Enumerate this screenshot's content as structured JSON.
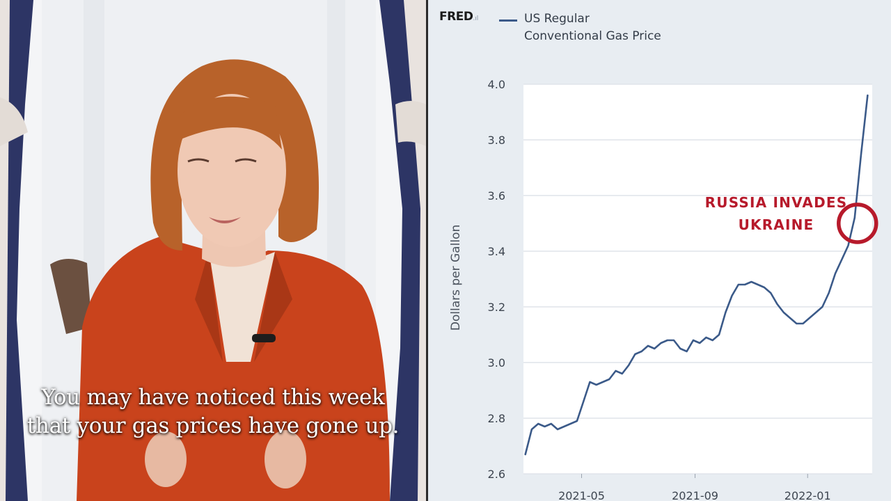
{
  "caption": {
    "line1": "You may have noticed this week",
    "line2": "that your gas prices have gone up."
  },
  "source_logo": "FRED",
  "annotation": {
    "line1": "RUSSIA INVADES",
    "line2": "UKRAINE",
    "color": "#b71a2b"
  },
  "colors": {
    "line": "#3b5a89",
    "plot_background": "#ffffff",
    "panel_background": "#e8edf2"
  },
  "chart_data": {
    "type": "line",
    "title": "",
    "xlabel": "",
    "ylabel": "Dollars per Gallon",
    "ylim": [
      2.6,
      4.0
    ],
    "yticks": [
      2.6,
      2.8,
      3.0,
      3.2,
      3.4,
      3.6,
      3.8,
      4.0
    ],
    "xticks": [
      "2021-05",
      "2021-09",
      "2022-01"
    ],
    "grid": true,
    "legend_position": "top",
    "series": [
      {
        "name": "US Regular Conventional Gas Price",
        "x": [
          "2021-03-01",
          "2021-03-08",
          "2021-03-15",
          "2021-03-22",
          "2021-03-29",
          "2021-04-05",
          "2021-04-12",
          "2021-04-19",
          "2021-04-26",
          "2021-05-03",
          "2021-05-10",
          "2021-05-17",
          "2021-05-24",
          "2021-05-31",
          "2021-06-07",
          "2021-06-14",
          "2021-06-21",
          "2021-06-28",
          "2021-07-05",
          "2021-07-12",
          "2021-07-19",
          "2021-07-26",
          "2021-08-02",
          "2021-08-09",
          "2021-08-16",
          "2021-08-23",
          "2021-08-30",
          "2021-09-06",
          "2021-09-13",
          "2021-09-20",
          "2021-09-27",
          "2021-10-04",
          "2021-10-11",
          "2021-10-18",
          "2021-10-25",
          "2021-11-01",
          "2021-11-08",
          "2021-11-15",
          "2021-11-22",
          "2021-11-29",
          "2021-12-06",
          "2021-12-13",
          "2021-12-20",
          "2021-12-27",
          "2022-01-03",
          "2022-01-10",
          "2022-01-17",
          "2022-01-24",
          "2022-01-31",
          "2022-02-07",
          "2022-02-14",
          "2022-02-21",
          "2022-02-28",
          "2022-03-07"
        ],
        "y": [
          2.67,
          2.76,
          2.78,
          2.77,
          2.78,
          2.76,
          2.77,
          2.78,
          2.79,
          2.86,
          2.93,
          2.92,
          2.93,
          2.94,
          2.97,
          2.96,
          2.99,
          3.03,
          3.04,
          3.06,
          3.05,
          3.07,
          3.08,
          3.08,
          3.05,
          3.04,
          3.08,
          3.07,
          3.09,
          3.08,
          3.1,
          3.18,
          3.24,
          3.28,
          3.28,
          3.29,
          3.28,
          3.27,
          3.25,
          3.21,
          3.18,
          3.16,
          3.14,
          3.14,
          3.16,
          3.18,
          3.2,
          3.25,
          3.32,
          3.37,
          3.42,
          3.52,
          3.75,
          3.96
        ]
      }
    ]
  }
}
